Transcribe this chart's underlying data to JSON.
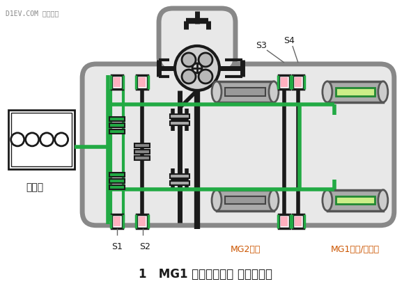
{
  "bg_color": "#ffffff",
  "title": "1   MG1 电机／发电机 启动发动机",
  "watermark": "D1EV.COM 第一电动",
  "label_s1": "S1",
  "label_s2": "S2",
  "label_s3": "S3",
  "label_s4": "S4",
  "label_mg2": "MG2电机",
  "label_mg1": "MG1电机/发电机",
  "label_engine": "发动机",
  "outer_box_color": "#888888",
  "green_color": "#22aa44",
  "black_color": "#1a1a1a",
  "pink_color": "#ffb0c0",
  "gray_motor": "#aaaaaa",
  "gray_dark": "#666666",
  "gray_light": "#cccccc",
  "light_green_color": "#ccee88",
  "housing_fill": "#e8e8e8",
  "shaft_color": "#333333"
}
